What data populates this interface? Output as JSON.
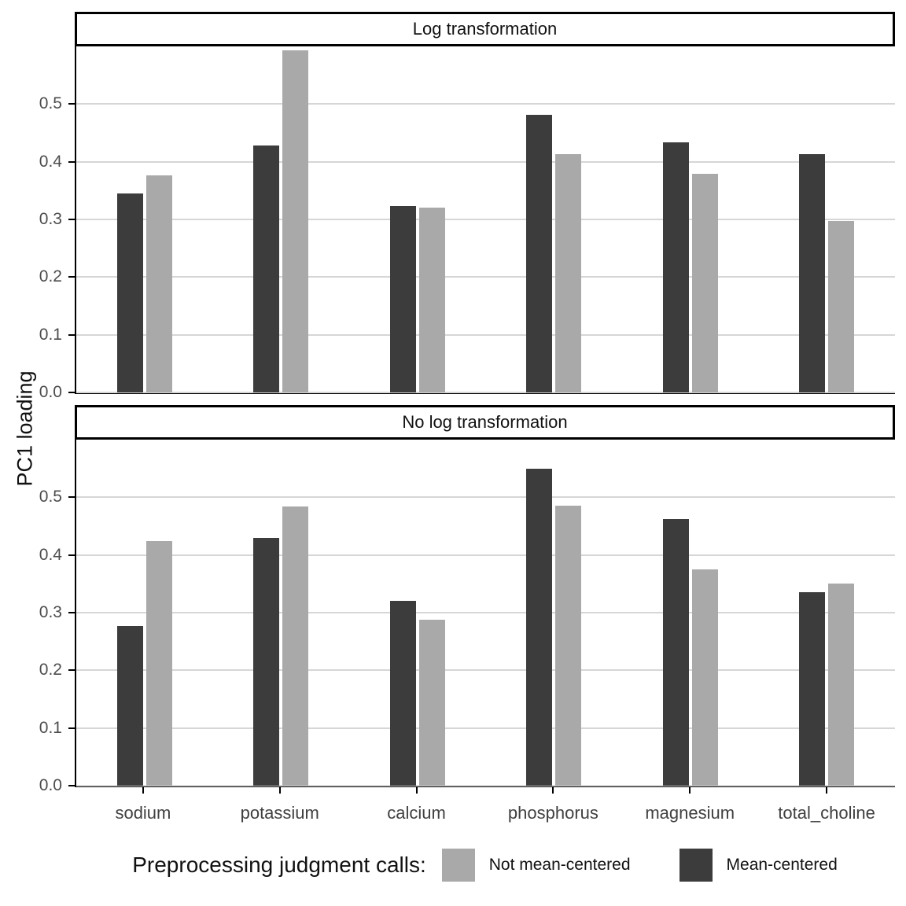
{
  "figure": {
    "y_axis_title": "PC1 loading",
    "y_ticks": [
      "0.0",
      "0.1",
      "0.2",
      "0.3",
      "0.4",
      "0.5"
    ],
    "colors": {
      "mean_centered": "#3C3C3C",
      "not_mean_centered": "#A9A9A9",
      "gridline": "#D6D6D6",
      "panel_border": "#000000"
    },
    "legend": {
      "title": "Preprocessing judgment calls:",
      "items": [
        {
          "label": "Not mean-centered",
          "color": "#A9A9A9"
        },
        {
          "label": "Mean-centered",
          "color": "#3C3C3C"
        }
      ]
    }
  },
  "chart_data": [
    {
      "type": "bar",
      "facet": "Log transformation",
      "categories": [
        "sodium",
        "potassium",
        "calcium",
        "phosphorus",
        "magnesium",
        "total_choline"
      ],
      "series": [
        {
          "name": "Mean-centered",
          "color": "#3C3C3C",
          "values": [
            0.345,
            0.428,
            0.323,
            0.482,
            0.434,
            0.413
          ]
        },
        {
          "name": "Not mean-centered",
          "color": "#A9A9A9",
          "values": [
            0.376,
            0.593,
            0.32,
            0.413,
            0.379,
            0.297
          ]
        }
      ],
      "xlabel": "",
      "ylabel": "PC1 loading",
      "ylim": [
        0,
        0.6
      ],
      "yticks": [
        0,
        0.1,
        0.2,
        0.3,
        0.4,
        0.5
      ],
      "grid": "horizontal-major",
      "legend_position": "bottom"
    },
    {
      "type": "bar",
      "facet": "No log transformation",
      "categories": [
        "sodium",
        "potassium",
        "calcium",
        "phosphorus",
        "magnesium",
        "total_choline"
      ],
      "series": [
        {
          "name": "Mean-centered",
          "color": "#3C3C3C",
          "values": [
            0.277,
            0.43,
            0.321,
            0.55,
            0.462,
            0.335
          ]
        },
        {
          "name": "Not mean-centered",
          "color": "#A9A9A9",
          "values": [
            0.424,
            0.484,
            0.288,
            0.485,
            0.375,
            0.35
          ]
        }
      ],
      "xlabel": "",
      "ylabel": "PC1 loading",
      "ylim": [
        0,
        0.6
      ],
      "yticks": [
        0,
        0.1,
        0.2,
        0.3,
        0.4,
        0.5
      ],
      "grid": "horizontal-major",
      "legend_position": "bottom"
    }
  ]
}
